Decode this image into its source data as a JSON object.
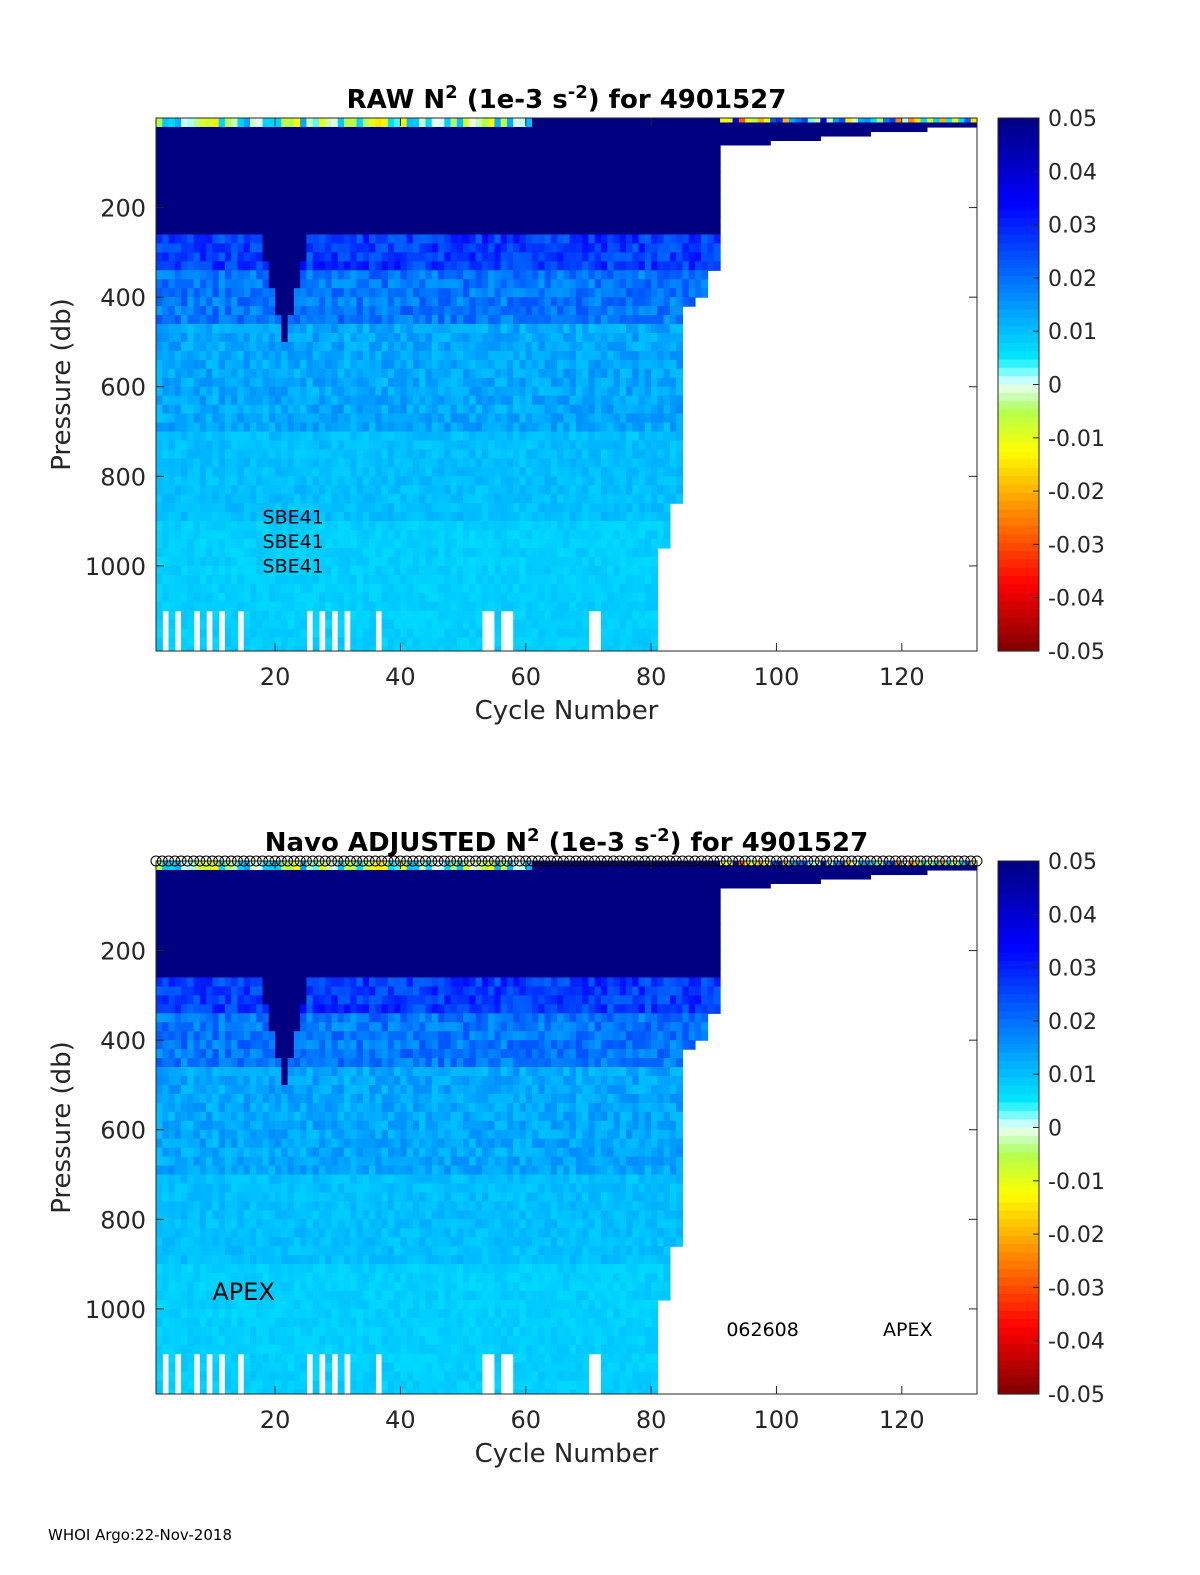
{
  "footer": "WHOI Argo:22-Nov-2018",
  "chart_data": [
    {
      "type": "heatmap",
      "title_prefix": "RAW N",
      "title_sup": "2",
      "title_mid": " (1e-3 s",
      "title_sup2": "-2",
      "title_suffix": ") for 4901527",
      "xlabel": "Cycle Number",
      "ylabel": "Pressure (db)",
      "xlim": [
        1,
        132
      ],
      "ylim": [
        1190,
        0
      ],
      "xticks": [
        20,
        40,
        60,
        80,
        100,
        120
      ],
      "yticks": [
        200,
        400,
        600,
        800,
        1000
      ],
      "colorbar": {
        "range": [
          -0.05,
          0.05
        ],
        "ticks": [
          "0.05",
          "0.04",
          "0.03",
          "0.02",
          "0.01",
          "0",
          "-0.01",
          "-0.02",
          "-0.03",
          "-0.04",
          "-0.05"
        ]
      },
      "annotations": [
        {
          "text": "SBE41",
          "x": 18,
          "y": 905
        },
        {
          "text": "SBE41",
          "x": 18,
          "y": 960
        },
        {
          "text": "SBE41",
          "x": 18,
          "y": 1015
        }
      ],
      "show_markers": false,
      "coverage": [
        {
          "cycles": [
            1,
            80
          ],
          "max_pressure": 1190
        },
        {
          "cycles": [
            81,
            82
          ],
          "max_pressure": 950
        },
        {
          "cycles": [
            83,
            84
          ],
          "max_pressure": 850
        },
        {
          "cycles": [
            85,
            86
          ],
          "max_pressure": 420
        },
        {
          "cycles": [
            87,
            88
          ],
          "max_pressure": 400
        },
        {
          "cycles": [
            89,
            90
          ],
          "max_pressure": 330
        }
      ],
      "dense_layer_cycles": [
        1,
        90
      ],
      "mixed_layer_cycles": [
        90,
        132
      ],
      "deep_gap_cycles": [
        2,
        4,
        7,
        9,
        11,
        14,
        25,
        27,
        29,
        31,
        36,
        53,
        54,
        56,
        57,
        70,
        71
      ]
    },
    {
      "type": "heatmap",
      "title_prefix": "Navo  ADJUSTED N",
      "title_sup": "2",
      "title_mid": " (1e-3 s",
      "title_sup2": "-2",
      "title_suffix": ") for 4901527",
      "xlabel": "Cycle Number",
      "ylabel": "Pressure (db)",
      "xlim": [
        1,
        132
      ],
      "ylim": [
        1190,
        0
      ],
      "xticks": [
        20,
        40,
        60,
        80,
        100,
        120
      ],
      "yticks": [
        200,
        400,
        600,
        800,
        1000
      ],
      "colorbar": {
        "range": [
          -0.05,
          0.05
        ],
        "ticks": [
          "0.05",
          "0.04",
          "0.03",
          "0.02",
          "0.01",
          "0",
          "-0.01",
          "-0.02",
          "-0.03",
          "-0.04",
          "-0.05"
        ]
      },
      "annotations": [
        {
          "text": "APEX",
          "x": 10,
          "y": 980,
          "size": "large"
        },
        {
          "text": "062608",
          "x": 92,
          "y": 1060
        },
        {
          "text": "APEX",
          "x": 117,
          "y": 1060
        }
      ],
      "show_markers": true,
      "coverage": [
        {
          "cycles": [
            1,
            80
          ],
          "max_pressure": 1190
        },
        {
          "cycles": [
            81,
            82
          ],
          "max_pressure": 980
        },
        {
          "cycles": [
            83,
            84
          ],
          "max_pressure": 850
        },
        {
          "cycles": [
            85,
            86
          ],
          "max_pressure": 420
        },
        {
          "cycles": [
            87,
            88
          ],
          "max_pressure": 400
        },
        {
          "cycles": [
            89,
            90
          ],
          "max_pressure": 330
        }
      ],
      "dense_layer_cycles": [
        1,
        90
      ],
      "mixed_layer_cycles": [
        90,
        132
      ],
      "deep_gap_cycles": [
        2,
        4,
        7,
        9,
        11,
        14,
        25,
        27,
        29,
        31,
        36,
        53,
        54,
        56,
        57,
        70,
        71
      ]
    }
  ]
}
